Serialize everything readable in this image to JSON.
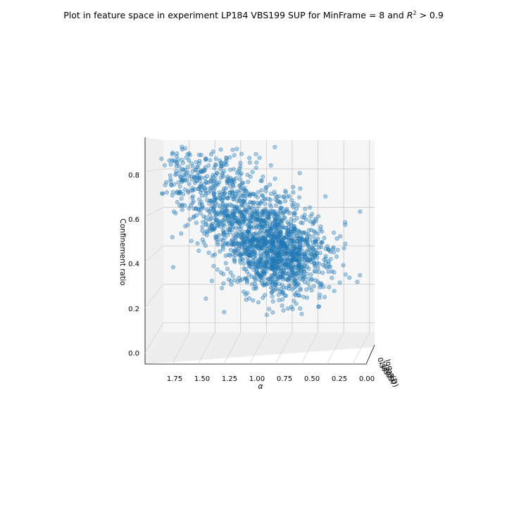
{
  "chart_data": {
    "type": "scatter",
    "title_prefix": "Plot in feature space in experiment LP184 VBS199 SUP for MinFrame = 8 and ",
    "title_r": "R",
    "title_sup": "2",
    "title_suffix": " > 0.9",
    "xlabel": "α",
    "ylabel": "Confinement ratio",
    "zlabel": "log₁₀(D)",
    "xlim": [
      2.0,
      -0.05
    ],
    "ylim": [
      -0.05,
      0.95
    ],
    "x_ticks": [
      "1.75",
      "1.50",
      "1.25",
      "1.00",
      "0.75",
      "0.50",
      "0.25",
      "0.00"
    ],
    "y_ticks": [
      "0.0",
      "0.2",
      "0.4",
      "0.6",
      "0.8"
    ],
    "z_ticks": [
      "0.5",
      "1.0",
      "1.5",
      "2.0",
      "2.5",
      "3.0"
    ],
    "grid": true,
    "point_color": "#1f77b4",
    "point_count": 1900,
    "cluster_center": {
      "alpha": 0.75,
      "confinement_ratio": 0.35
    },
    "upper_left_points_to": {
      "alpha": 1.8,
      "confinement_ratio": 0.88
    }
  }
}
